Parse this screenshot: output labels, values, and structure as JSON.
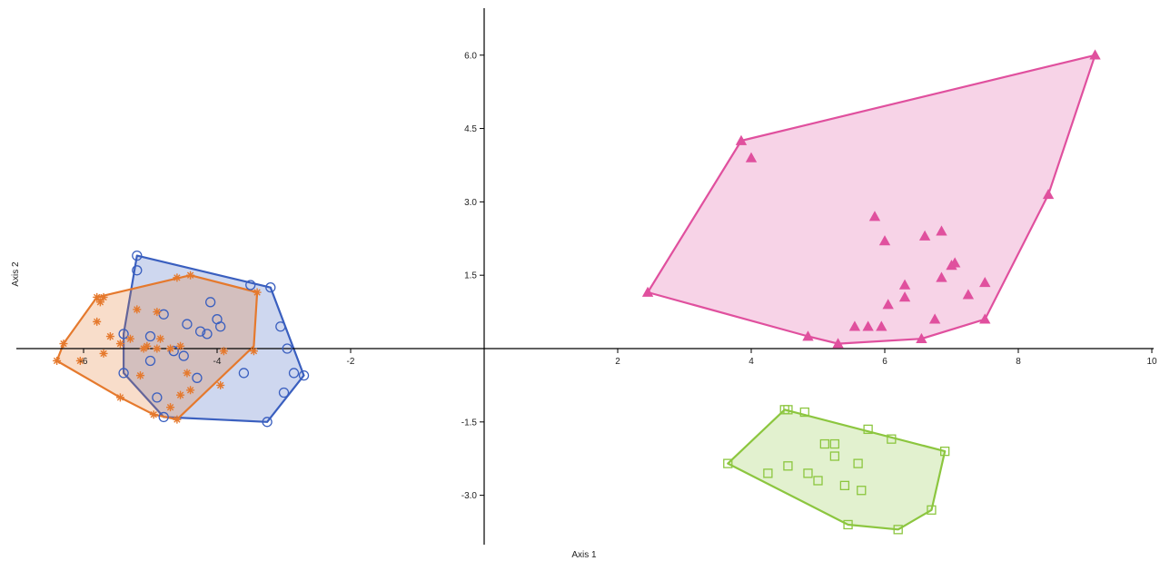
{
  "chart_data": {
    "type": "scatter",
    "title": "",
    "xlabel": "Axis 1",
    "ylabel": "Axis 2",
    "xlim": [
      -7.25,
      10
    ],
    "ylim": [
      -4.0,
      7.0
    ],
    "grid": false,
    "x_ticks": [
      -6,
      -4,
      -2,
      2,
      4,
      6,
      8,
      10
    ],
    "y_ticks": [
      -3.0,
      -1.5,
      1.5,
      3.0,
      4.5,
      6.0
    ],
    "x_tick_labels": [
      "-6",
      "-4",
      "-2",
      "2",
      "4",
      "6",
      "8",
      "10"
    ],
    "y_tick_labels": [
      "-3.0",
      "-1.5",
      "1.5",
      "3.0",
      "4.5",
      "6.0"
    ],
    "series": [
      {
        "marker": "circle",
        "color": "#3a5fbf",
        "fill": "#3a5fbf",
        "points": [
          [
            -5.2,
            1.9
          ],
          [
            -5.2,
            1.6
          ],
          [
            -3.5,
            1.3
          ],
          [
            -3.2,
            1.25
          ],
          [
            -4.1,
            0.95
          ],
          [
            -4.8,
            0.7
          ],
          [
            -4.0,
            0.6
          ],
          [
            -4.45,
            0.5
          ],
          [
            -3.95,
            0.45
          ],
          [
            -4.25,
            0.35
          ],
          [
            -4.15,
            0.3
          ],
          [
            -5.4,
            0.3
          ],
          [
            -5.0,
            0.25
          ],
          [
            -3.05,
            0.45
          ],
          [
            -2.95,
            0.0
          ],
          [
            -4.65,
            -0.05
          ],
          [
            -4.5,
            -0.15
          ],
          [
            -5.0,
            -0.25
          ],
          [
            -5.4,
            -0.5
          ],
          [
            -3.6,
            -0.5
          ],
          [
            -2.85,
            -0.5
          ],
          [
            -2.7,
            -0.55
          ],
          [
            -4.3,
            -0.6
          ],
          [
            -3.0,
            -0.9
          ],
          [
            -4.9,
            -1.0
          ],
          [
            -4.8,
            -1.4
          ],
          [
            -3.25,
            -1.5
          ]
        ],
        "hull": [
          [
            -5.2,
            1.9
          ],
          [
            -3.2,
            1.25
          ],
          [
            -2.7,
            -0.55
          ],
          [
            -3.25,
            -1.5
          ],
          [
            -4.8,
            -1.4
          ],
          [
            -5.4,
            -0.5
          ],
          [
            -5.4,
            0.3
          ]
        ]
      },
      {
        "marker": "asterisk",
        "color": "#e5792d",
        "fill": "#e5792d",
        "points": [
          [
            -4.4,
            1.5
          ],
          [
            -4.6,
            1.45
          ],
          [
            -3.4,
            1.15
          ],
          [
            -5.8,
            1.05
          ],
          [
            -5.7,
            1.05
          ],
          [
            -5.75,
            0.95
          ],
          [
            -5.2,
            0.8
          ],
          [
            -4.9,
            0.75
          ],
          [
            -5.8,
            0.55
          ],
          [
            -5.6,
            0.25
          ],
          [
            -5.3,
            0.2
          ],
          [
            -4.85,
            0.2
          ],
          [
            -5.45,
            0.1
          ],
          [
            -5.05,
            0.05
          ],
          [
            -4.55,
            0.05
          ],
          [
            -6.3,
            0.1
          ],
          [
            -5.7,
            -0.1
          ],
          [
            -4.7,
            0.0
          ],
          [
            -5.1,
            0.0
          ],
          [
            -4.9,
            0.0
          ],
          [
            -3.9,
            -0.05
          ],
          [
            -3.45,
            -0.05
          ],
          [
            -6.4,
            -0.25
          ],
          [
            -6.05,
            -0.25
          ],
          [
            -4.45,
            -0.5
          ],
          [
            -5.15,
            -0.55
          ],
          [
            -3.95,
            -0.75
          ],
          [
            -4.4,
            -0.85
          ],
          [
            -4.55,
            -0.95
          ],
          [
            -5.45,
            -1.0
          ],
          [
            -4.7,
            -1.2
          ],
          [
            -4.95,
            -1.35
          ],
          [
            -4.6,
            -1.45
          ]
        ],
        "hull": [
          [
            -4.4,
            1.5
          ],
          [
            -3.4,
            1.15
          ],
          [
            -3.45,
            0.05
          ],
          [
            -4.6,
            -1.45
          ],
          [
            -4.95,
            -1.35
          ],
          [
            -5.45,
            -1.0
          ],
          [
            -6.4,
            -0.25
          ],
          [
            -6.3,
            0.1
          ],
          [
            -5.8,
            1.05
          ]
        ]
      },
      {
        "marker": "triangle",
        "color": "#e0509e",
        "fill": "#e0509e",
        "points": [
          [
            9.15,
            6.0
          ],
          [
            3.85,
            4.25
          ],
          [
            4.0,
            3.9
          ],
          [
            8.45,
            3.15
          ],
          [
            5.85,
            2.7
          ],
          [
            6.85,
            2.4
          ],
          [
            6.6,
            2.3
          ],
          [
            6.0,
            2.2
          ],
          [
            7.05,
            1.75
          ],
          [
            7.0,
            1.7
          ],
          [
            6.85,
            1.45
          ],
          [
            7.5,
            1.35
          ],
          [
            6.3,
            1.3
          ],
          [
            7.25,
            1.1
          ],
          [
            6.3,
            1.05
          ],
          [
            2.45,
            1.15
          ],
          [
            6.05,
            0.9
          ],
          [
            6.75,
            0.6
          ],
          [
            7.5,
            0.6
          ],
          [
            5.55,
            0.45
          ],
          [
            5.75,
            0.45
          ],
          [
            5.95,
            0.45
          ],
          [
            4.85,
            0.25
          ],
          [
            6.55,
            0.2
          ],
          [
            5.3,
            0.1
          ]
        ],
        "hull": [
          [
            9.15,
            6.0
          ],
          [
            8.45,
            3.15
          ],
          [
            7.5,
            0.6
          ],
          [
            6.55,
            0.2
          ],
          [
            5.3,
            0.1
          ],
          [
            4.85,
            0.25
          ],
          [
            2.45,
            1.15
          ],
          [
            3.85,
            4.25
          ]
        ]
      },
      {
        "marker": "square",
        "color": "#8cc63f",
        "fill": "#8cc63f",
        "points": [
          [
            4.5,
            -1.25
          ],
          [
            4.55,
            -1.25
          ],
          [
            4.8,
            -1.3
          ],
          [
            5.75,
            -1.65
          ],
          [
            6.1,
            -1.85
          ],
          [
            6.9,
            -2.1
          ],
          [
            5.1,
            -1.95
          ],
          [
            5.25,
            -1.95
          ],
          [
            5.25,
            -2.2
          ],
          [
            5.6,
            -2.35
          ],
          [
            4.55,
            -2.4
          ],
          [
            4.85,
            -2.55
          ],
          [
            3.65,
            -2.35
          ],
          [
            4.25,
            -2.55
          ],
          [
            5.0,
            -2.7
          ],
          [
            5.4,
            -2.8
          ],
          [
            5.65,
            -2.9
          ],
          [
            6.7,
            -3.3
          ],
          [
            5.45,
            -3.6
          ],
          [
            6.2,
            -3.7
          ]
        ],
        "hull": [
          [
            4.5,
            -1.25
          ],
          [
            6.9,
            -2.1
          ],
          [
            6.7,
            -3.3
          ],
          [
            6.2,
            -3.7
          ],
          [
            5.45,
            -3.6
          ],
          [
            3.65,
            -2.35
          ]
        ]
      }
    ]
  }
}
